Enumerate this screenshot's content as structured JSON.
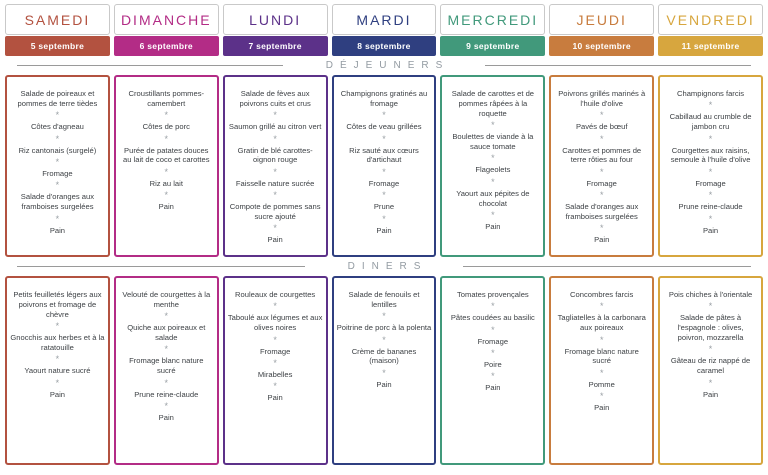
{
  "titles": {
    "lunch": "DÉJEUNERS",
    "dinner": "DINERS"
  },
  "separator": "*",
  "days": [
    {
      "name": "SAMEDI",
      "date": "5 septembre",
      "color": "#b35240",
      "lunch": [
        "Salade de poireaux et pommes de terre tièdes",
        "Côtes d'agneau",
        "Riz cantonais (surgelé)",
        "Fromage",
        "Salade d'oranges aux framboises surgelées",
        "Pain"
      ],
      "dinner": [
        "Petits feuilletés légers aux poivrons et fromage de chèvre",
        "Gnocchis aux herbes et à la ratatouille",
        "Yaourt nature sucré",
        "Pain"
      ]
    },
    {
      "name": "DIMANCHE",
      "date": "6 septembre",
      "color": "#b32c86",
      "lunch": [
        "Croustillants pommes-camembert",
        "Côtes de porc",
        "Purée de patates douces au lait de coco et carottes",
        "Riz au lait",
        "Pain"
      ],
      "dinner": [
        "Velouté de courgettes à la menthe",
        "Quiche aux poireaux et salade",
        "Fromage blanc nature sucré",
        "Prune reine-claude",
        "Pain"
      ]
    },
    {
      "name": "LUNDI",
      "date": "7 septembre",
      "color": "#5c3189",
      "lunch": [
        "Salade de fèves aux poivrons cuits et crus",
        "Saumon grillé au citron vert",
        "Gratin de blé carottes-oignon rouge",
        "Faisselle nature sucrée",
        "Compote de pommes sans sucre ajouté",
        "Pain"
      ],
      "dinner": [
        "Rouleaux de courgettes",
        "Taboulé aux légumes et aux olives noires",
        "Fromage",
        "Mirabelles",
        "Pain"
      ]
    },
    {
      "name": "MARDI",
      "date": "8 septembre",
      "color": "#2f3f80",
      "lunch": [
        "Champignons gratinés au fromage",
        "Côtes de veau grillées",
        "Riz sauté aux cœurs d'artichaut",
        "Fromage",
        "Prune",
        "Pain"
      ],
      "dinner": [
        "Salade de fenouils et lentilles",
        "Poitrine de porc à la polenta",
        "Crème de bananes (maison)",
        "Pain"
      ]
    },
    {
      "name": "MERCREDI",
      "date": "9 septembre",
      "color": "#41997b",
      "lunch": [
        "Salade de carottes et de pommes râpées à la roquette",
        "Boulettes de viande à la sauce tomate",
        "Flageolets",
        "Yaourt aux pépites de chocolat",
        "Pain"
      ],
      "dinner": [
        "Tomates provençales",
        "Pâtes coudées au basilic",
        "Fromage",
        "Poire",
        "Pain"
      ]
    },
    {
      "name": "JEUDI",
      "date": "10 septembre",
      "color": "#c87c3e",
      "lunch": [
        "Poivrons grillés marinés à l'huile d'olive",
        "Pavés de bœuf",
        "Carottes et pommes de terre rôties au four",
        "Fromage",
        "Salade d'oranges aux framboises surgelées",
        "Pain"
      ],
      "dinner": [
        "Concombres farcis",
        "Tagliatelles à la carbonara aux poireaux",
        "Fromage blanc nature sucré",
        "Pomme",
        "Pain"
      ]
    },
    {
      "name": "VENDREDI",
      "date": "11 septembre",
      "color": "#d7a63e",
      "lunch": [
        "Champignons farcis",
        "Cabillaud au crumble de jambon cru",
        "Courgettes aux raisins, semoule à l'huile d'olive",
        "Fromage",
        "Prune reine-claude",
        "Pain"
      ],
      "dinner": [
        "Pois chiches à l'orientale",
        "Salade de pâtes à l'espagnole : olives, poivron, mozzarella",
        "Gâteau de riz nappé de caramel",
        "Pain"
      ]
    }
  ]
}
